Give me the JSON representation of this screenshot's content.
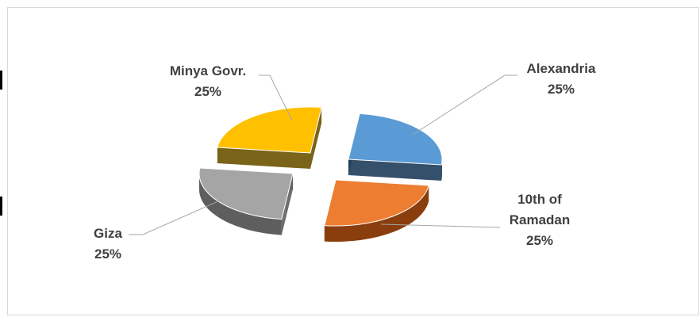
{
  "chart_data": {
    "type": "pie",
    "style": "3d-exploded",
    "slices": [
      {
        "name": "Alexandria",
        "value": 25,
        "label": "25%",
        "color": "#5B9BD5",
        "side": "#1F3D5A"
      },
      {
        "name": "10th of Ramadan",
        "name_lines": [
          "10th of",
          "Ramadan"
        ],
        "value": 25,
        "label": "25%",
        "color": "#ED7D31",
        "side": "#8A3E0E"
      },
      {
        "name": "Giza",
        "value": 25,
        "label": "25%",
        "color": "#A5A5A5",
        "side": "#5E5E5E"
      },
      {
        "name": "Minya Govr.",
        "value": 25,
        "label": "25%",
        "color": "#FFC000",
        "side": "#6B5300"
      }
    ],
    "legend": "none",
    "data_labels": "outside-with-leader-lines"
  }
}
